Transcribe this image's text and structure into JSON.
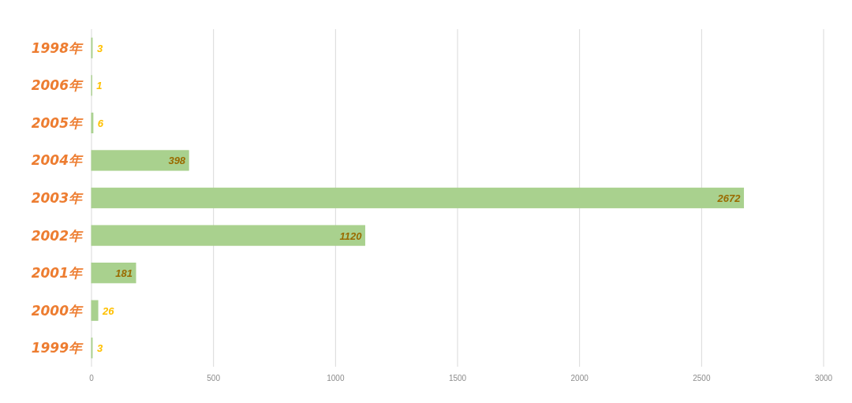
{
  "chart_data": {
    "type": "bar",
    "orientation": "horizontal",
    "categories": [
      "1998年",
      "2006年",
      "2005年",
      "2004年",
      "2003年",
      "2002年",
      "2001年",
      "2000年",
      "1999年"
    ],
    "values": [
      3,
      1,
      6,
      398,
      2672,
      1120,
      181,
      26,
      3
    ],
    "color": "#a9d18e",
    "xlim": [
      0,
      3000
    ],
    "xticks": [
      0,
      500,
      1000,
      1500,
      2000,
      2500,
      3000
    ],
    "grid": "x",
    "data_labels": true
  }
}
